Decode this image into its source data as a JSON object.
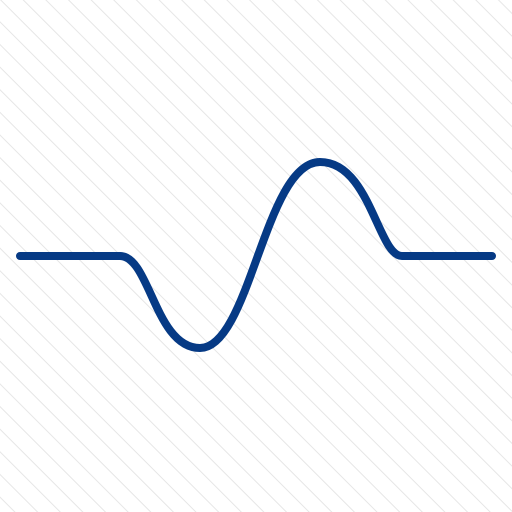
{
  "icon": {
    "name": "waveform-icon",
    "stroke_color": "#063a85",
    "background_color": "#ffffff",
    "stripe_color": "#e6e6e6"
  }
}
